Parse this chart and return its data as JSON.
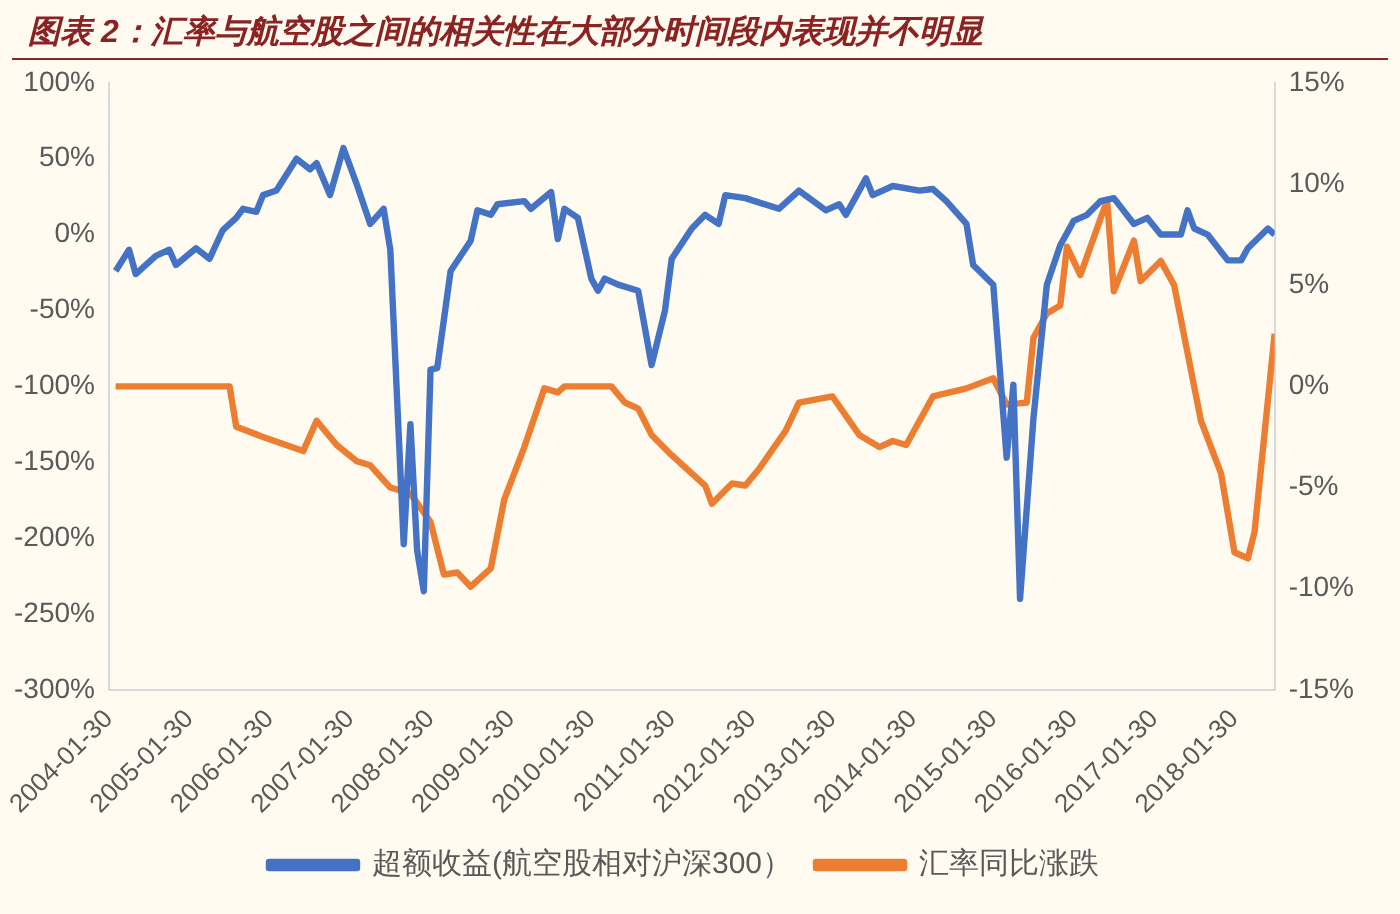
{
  "chart_data": {
    "type": "line",
    "title": "图表 2：汇率与航空股之间的相关性在大部分时间段内表现并不明显",
    "xlim": [
      "2004-01",
      "2018-07"
    ],
    "xticks": [
      {
        "value": "2004-01",
        "label": "2004-01-30"
      },
      {
        "value": "2005-01",
        "label": "2005-01-30"
      },
      {
        "value": "2006-01",
        "label": "2006-01-30"
      },
      {
        "value": "2007-01",
        "label": "2007-01-30"
      },
      {
        "value": "2008-01",
        "label": "2008-01-30"
      },
      {
        "value": "2009-01",
        "label": "2009-01-30"
      },
      {
        "value": "2010-01",
        "label": "2010-01-30"
      },
      {
        "value": "2011-01",
        "label": "2011-01-30"
      },
      {
        "value": "2012-01",
        "label": "2012-01-30"
      },
      {
        "value": "2013-01",
        "label": "2013-01-30"
      },
      {
        "value": "2014-01",
        "label": "2014-01-30"
      },
      {
        "value": "2015-01",
        "label": "2015-01-30"
      },
      {
        "value": "2016-01",
        "label": "2016-01-30"
      },
      {
        "value": "2017-01",
        "label": "2017-01-30"
      },
      {
        "value": "2018-01",
        "label": "2018-01-30"
      }
    ],
    "ylim": [
      -300,
      100
    ],
    "yticks": [
      {
        "value": -300,
        "label": "-300%"
      },
      {
        "value": -250,
        "label": "-250%"
      },
      {
        "value": -200,
        "label": "-200%"
      },
      {
        "value": -150,
        "label": "-150%"
      },
      {
        "value": -100,
        "label": "-100%"
      },
      {
        "value": -50,
        "label": "-50%"
      },
      {
        "value": 0,
        "label": "0%"
      },
      {
        "value": 50,
        "label": "50%"
      },
      {
        "value": 100,
        "label": "100%"
      }
    ],
    "y2lim": [
      -15,
      15
    ],
    "y2ticks": [
      {
        "value": -15,
        "label": "-15%"
      },
      {
        "value": -10,
        "label": "-10%"
      },
      {
        "value": -5,
        "label": "-5%"
      },
      {
        "value": 0,
        "label": "0%"
      },
      {
        "value": 5,
        "label": "5%"
      },
      {
        "value": 10,
        "label": "10%"
      },
      {
        "value": 15,
        "label": "15%"
      }
    ],
    "legend": "bottom",
    "series": [
      {
        "name": "超额收益(航空股相对沪深300）",
        "color": "#4472c4",
        "x": [
          "2004-02",
          "2004-04",
          "2004-05",
          "2004-08",
          "2004-10",
          "2004-11",
          "2005-02",
          "2005-04",
          "2005-06",
          "2005-08",
          "2005-09",
          "2005-11",
          "2005-12",
          "2006-02",
          "2006-05",
          "2006-07",
          "2006-08",
          "2006-10",
          "2006-12",
          "2007-02",
          "2007-04",
          "2007-06",
          "2007-07",
          "2007-09",
          "2007-10",
          "2007-11",
          "2007-12",
          "2008-01",
          "2008-02",
          "2008-04",
          "2008-07",
          "2008-08",
          "2008-10",
          "2008-11",
          "2009-03",
          "2009-04",
          "2009-07",
          "2009-08",
          "2009-09",
          "2009-11",
          "2010-01",
          "2010-02",
          "2010-03",
          "2010-05",
          "2010-08",
          "2010-10",
          "2010-12",
          "2011-01",
          "2011-04",
          "2011-06",
          "2011-08",
          "2011-09",
          "2011-12",
          "2012-05",
          "2012-08",
          "2012-12",
          "2013-02",
          "2013-03",
          "2013-06",
          "2013-07",
          "2013-10",
          "2014-02",
          "2014-04",
          "2014-06",
          "2014-09",
          "2014-10",
          "2015-01",
          "2015-03",
          "2015-04",
          "2015-05",
          "2015-07",
          "2015-09",
          "2015-11",
          "2016-01",
          "2016-03",
          "2016-05",
          "2016-07",
          "2016-10",
          "2016-12",
          "2017-02",
          "2017-05",
          "2017-06",
          "2017-07",
          "2017-09",
          "2017-12",
          "2018-02",
          "2018-03",
          "2018-06",
          "2018-07"
        ],
        "values": [
          -24,
          -10,
          -26,
          -14,
          -10,
          -20,
          -9,
          -16,
          3,
          11,
          17,
          15,
          26,
          29,
          50,
          43,
          47,
          26,
          57,
          33,
          7,
          17,
          -10,
          -204,
          -125,
          -208,
          -235,
          -89,
          -88,
          -24,
          -4,
          16,
          13,
          20,
          22,
          17,
          28,
          -3,
          17,
          11,
          -29,
          -37,
          -29,
          -33,
          -37,
          -86,
          -50,
          -16,
          4,
          13,
          7,
          26,
          24,
          17,
          29,
          16,
          20,
          13,
          37,
          26,
          32,
          29,
          30,
          22,
          7,
          -20,
          -33,
          -147,
          -99,
          -240,
          -121,
          -33,
          -7,
          9,
          13,
          22,
          24,
          7,
          11,
          0,
          0,
          16,
          4,
          0,
          -17,
          -17,
          -9,
          4,
          0
        ]
      },
      {
        "name": "汇率同比涨跌",
        "color": "#ed7d31",
        "axis": "y2",
        "x": [
          "2004-02",
          "2005-07",
          "2005-08",
          "2005-12",
          "2006-06",
          "2006-08",
          "2006-11",
          "2007-02",
          "2007-04",
          "2007-07",
          "2007-10",
          "2008-01",
          "2008-03",
          "2008-05",
          "2008-07",
          "2008-10",
          "2008-12",
          "2009-03",
          "2009-06",
          "2009-08",
          "2009-09",
          "2010-04",
          "2010-06",
          "2010-08",
          "2010-10",
          "2011-01",
          "2011-06",
          "2011-07",
          "2011-10",
          "2011-12",
          "2012-02",
          "2012-06",
          "2012-08",
          "2013-01",
          "2013-05",
          "2013-08",
          "2013-10",
          "2013-12",
          "2014-04",
          "2014-09",
          "2015-01",
          "2015-03",
          "2015-06",
          "2015-07",
          "2015-09",
          "2015-11",
          "2015-12",
          "2016-02",
          "2016-06",
          "2016-07",
          "2016-10",
          "2016-11",
          "2017-02",
          "2017-04",
          "2017-08",
          "2017-11",
          "2018-01",
          "2018-03",
          "2018-04",
          "2018-07"
        ],
        "values": [
          0,
          0,
          -2.0,
          -2.5,
          -3.2,
          -1.7,
          -2.9,
          -3.7,
          -3.9,
          -5.0,
          -5.3,
          -6.7,
          -9.3,
          -9.2,
          -9.9,
          -9.0,
          -5.6,
          -3.0,
          -0.1,
          -0.3,
          0,
          0,
          -0.8,
          -1.1,
          -2.4,
          -3.4,
          -4.9,
          -5.8,
          -4.8,
          -4.9,
          -4.1,
          -2.2,
          -0.8,
          -0.5,
          -2.4,
          -3.0,
          -2.7,
          -2.9,
          -0.5,
          -0.1,
          0.4,
          -0.9,
          -0.8,
          2.4,
          3.6,
          4.0,
          6.9,
          5.5,
          9.2,
          4.7,
          7.2,
          5.2,
          6.2,
          5.0,
          -1.7,
          -4.3,
          -8.2,
          -8.5,
          -7.2,
          2.6
        ]
      }
    ]
  }
}
